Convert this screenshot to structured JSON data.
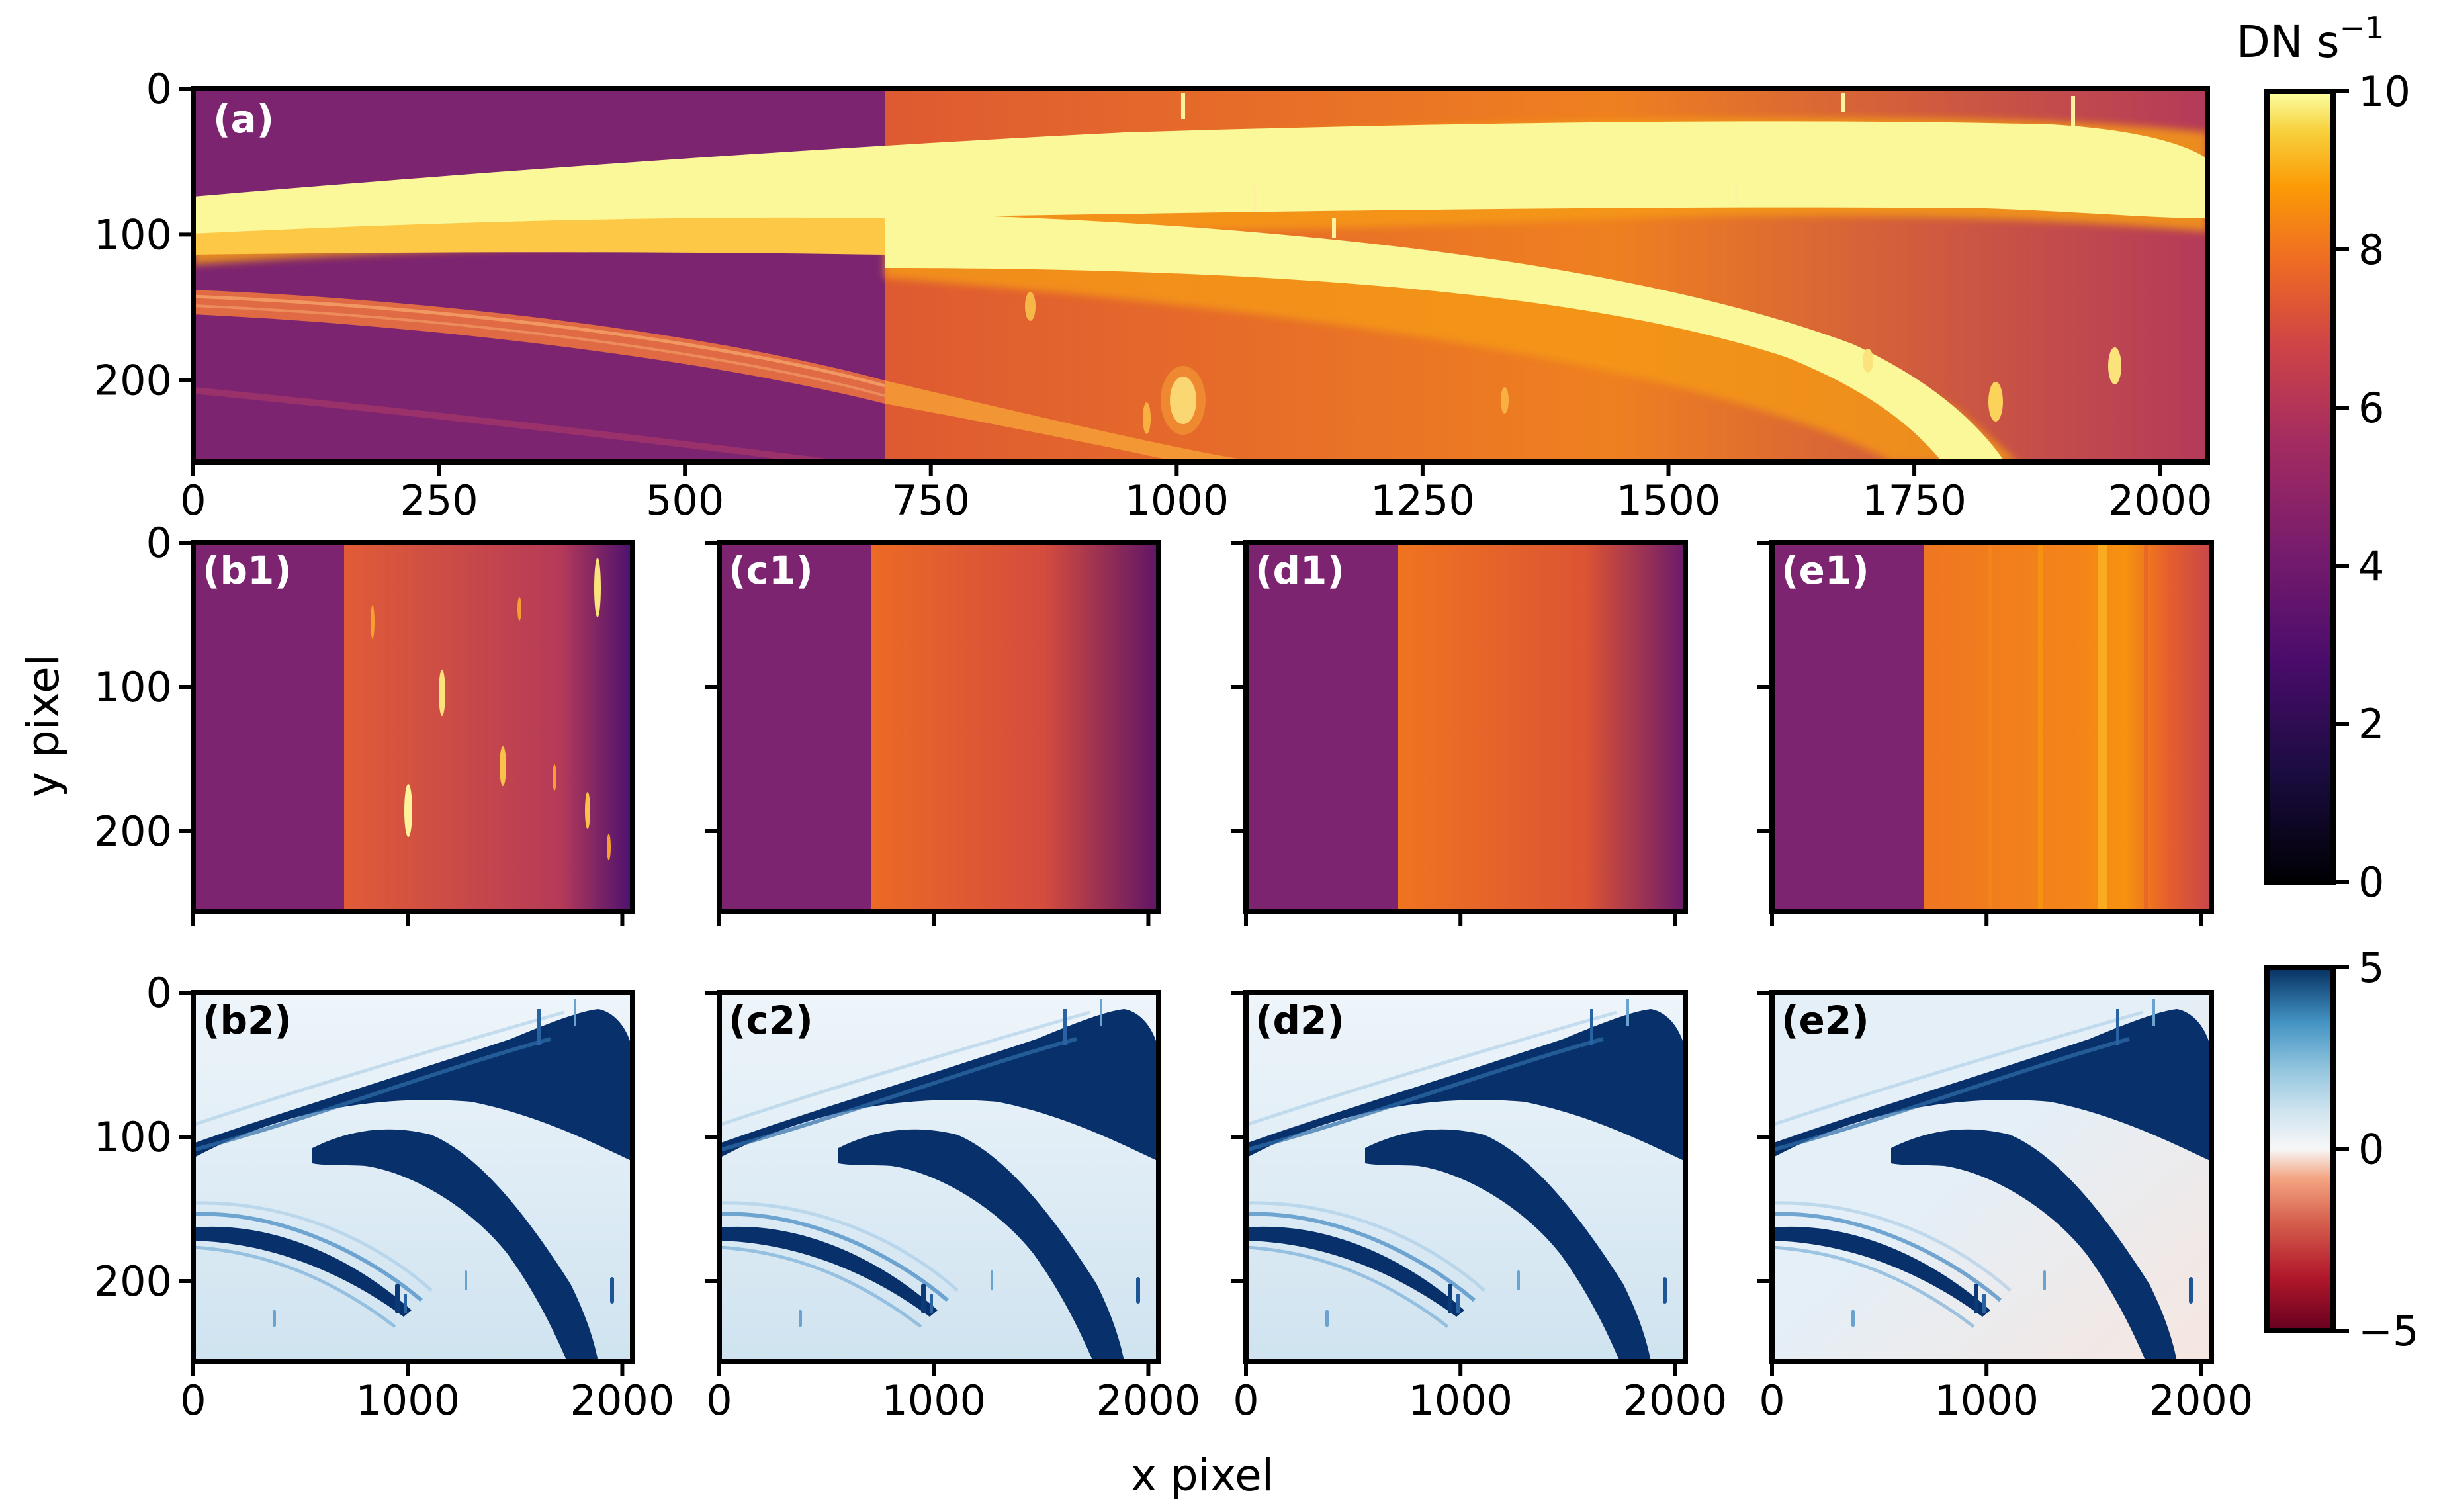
{
  "figure": {
    "xlabel": "x pixel",
    "ylabel": "y pixel"
  },
  "colorbars": {
    "top": {
      "label": "DN s",
      "label_exp": "−1",
      "ticks": [
        "0",
        "2",
        "4",
        "6",
        "8",
        "10"
      ],
      "range": [
        0,
        10
      ],
      "colormap": "inferno",
      "colors": [
        "#000004",
        "#320a5e",
        "#781b6c",
        "#bb3754",
        "#ec6824",
        "#fbb41a",
        "#fcffa4"
      ]
    },
    "bottom": {
      "ticks": [
        "−5",
        "0",
        "5"
      ],
      "range": [
        -5,
        5
      ],
      "colormap": "RdBu",
      "colors": [
        "#67001f",
        "#d6604d",
        "#fddbc7",
        "#f7f7f7",
        "#d1e5f0",
        "#4393c3",
        "#053061"
      ]
    }
  },
  "panels": {
    "a": {
      "label": "(a)"
    },
    "b1": {
      "label": "(b1)"
    },
    "c1": {
      "label": "(c1)"
    },
    "d1": {
      "label": "(d1)"
    },
    "e1": {
      "label": "(e1)"
    },
    "b2": {
      "label": "(b2)"
    },
    "c2": {
      "label": "(c2)"
    },
    "d2": {
      "label": "(d2)"
    },
    "e2": {
      "label": "(e2)"
    }
  },
  "ticks": {
    "a_x": [
      "0",
      "250",
      "500",
      "750",
      "1000",
      "1250",
      "1500",
      "1750",
      "2000"
    ],
    "a_y": [
      "0",
      "100",
      "200"
    ],
    "b1_y": [
      "0",
      "100",
      "200"
    ],
    "b2_y": [
      "0",
      "100",
      "200"
    ],
    "small_x": [
      "0",
      "1000",
      "2000"
    ]
  },
  "chart_data": {
    "type": "heatmap",
    "image_extent": {
      "x": [
        0,
        2048
      ],
      "y": [
        0,
        256
      ]
    },
    "x_ticks_full": [
      0,
      250,
      500,
      750,
      1000,
      1250,
      1500,
      1750,
      2000
    ],
    "x_ticks_small": [
      0,
      1000,
      2000
    ],
    "y_ticks": [
      0,
      100,
      200
    ],
    "colorbar_rate_range": [
      0,
      10
    ],
    "colorbar_residual_range": [
      -5,
      5
    ]
  }
}
